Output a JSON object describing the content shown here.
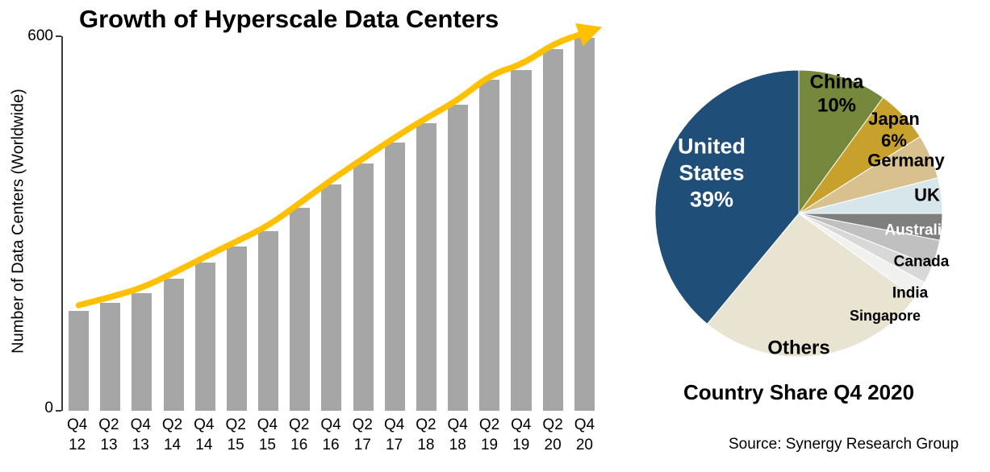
{
  "chart_data": [
    {
      "type": "bar",
      "title": "Growth of Hyperscale Data Centers",
      "ylabel": "Number of Data Centers (Worldwide)",
      "xlabel": "",
      "ylim": [
        0,
        600
      ],
      "ytick_labels": [
        "600",
        "0"
      ],
      "grid": false,
      "bar_color": "#A6A6A6",
      "trend_arrow_color": "#FFC000",
      "categories": [
        "Q4 12",
        "Q2 13",
        "Q4 13",
        "Q2 14",
        "Q4 14",
        "Q2 15",
        "Q4 15",
        "Q2 16",
        "Q4 16",
        "Q2 17",
        "Q4 17",
        "Q2 18",
        "Q4 18",
        "Q2 19",
        "Q4 19",
        "Q2 20",
        "Q4 20"
      ],
      "values": [
        160,
        173,
        188,
        212,
        238,
        263,
        288,
        325,
        362,
        396,
        430,
        461,
        490,
        530,
        546,
        580,
        597
      ]
    },
    {
      "type": "pie",
      "title": "Country Share Q4 2020",
      "legend_position": "labels-on-chart",
      "slices": [
        {
          "label": "China",
          "value": 10,
          "color": "#76883C",
          "text_color": "#000000",
          "display_lines": [
            "China",
            "10%"
          ]
        },
        {
          "label": "Japan",
          "value": 6,
          "color": "#C7A12B",
          "text_color": "#000000",
          "display_lines": [
            "Japan",
            "6%"
          ]
        },
        {
          "label": "Germany",
          "value": 5,
          "color": "#D9C18F",
          "text_color": "#000000",
          "display_lines": [
            "Germany"
          ]
        },
        {
          "label": "UK",
          "value": 4,
          "color": "#D6E6EB",
          "text_color": "#000000",
          "display_lines": [
            "UK"
          ]
        },
        {
          "label": "Australia",
          "value": 3,
          "color": "#7F7F7F",
          "text_color": "#FFFFFF",
          "display_lines": [
            "Australia"
          ]
        },
        {
          "label": "Canada",
          "value": 3,
          "color": "#C0C0C0",
          "text_color": "#000000",
          "display_lines": [
            "Canada"
          ]
        },
        {
          "label": "India",
          "value": 2,
          "color": "#D8D8D8",
          "text_color": "#000000",
          "display_lines": [
            "India"
          ]
        },
        {
          "label": "Singapore",
          "value": 2,
          "color": "#F1F1EF",
          "text_color": "#000000",
          "display_lines": [
            "Singapore"
          ]
        },
        {
          "label": "Others",
          "value": 26,
          "color": "#E9E4D2",
          "text_color": "#000000",
          "display_lines": [
            "Others"
          ]
        },
        {
          "label": "United States",
          "value": 39,
          "color": "#1F4E79",
          "text_color": "#FFFFFF",
          "display_lines": [
            "United",
            "States",
            "39%"
          ]
        }
      ]
    }
  ],
  "source_text": "Source: Synergy Research Group",
  "colors": {
    "background": "#FFFFFF",
    "bar": "#A6A6A6",
    "trend_arrow": "#FFC000",
    "axis": "#3A3A3A"
  }
}
